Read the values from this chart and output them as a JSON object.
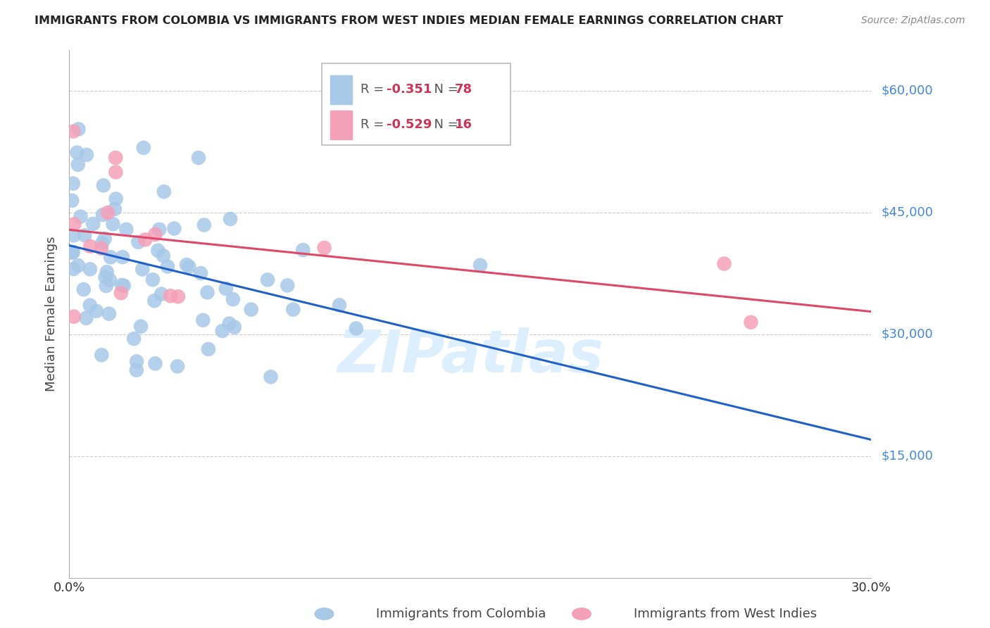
{
  "title": "IMMIGRANTS FROM COLOMBIA VS IMMIGRANTS FROM WEST INDIES MEDIAN FEMALE EARNINGS CORRELATION CHART",
  "source": "Source: ZipAtlas.com",
  "ylabel": "Median Female Earnings",
  "ytick_labels": [
    "$60,000",
    "$45,000",
    "$30,000",
    "$15,000"
  ],
  "ytick_values": [
    60000,
    45000,
    30000,
    15000
  ],
  "ylim": [
    0,
    65000
  ],
  "xlim": [
    0.0,
    0.3
  ],
  "legend_r_colombia": "-0.351",
  "legend_n_colombia": "78",
  "legend_r_westindies": "-0.529",
  "legend_n_westindies": "16",
  "colombia_color": "#a8c8e8",
  "westindies_color": "#f4a0b8",
  "line_colombia_color": "#2060c8",
  "line_westindies_color": "#e04868",
  "watermark": "ZIPatlas",
  "watermark_color": "#ddeeff",
  "ytick_color": "#4488dd",
  "title_color": "#222222",
  "source_color": "#888888",
  "label_color": "#444444",
  "tick_label_color": "#333333",
  "grid_color": "#cccccc",
  "spine_color": "#aaaaaa"
}
